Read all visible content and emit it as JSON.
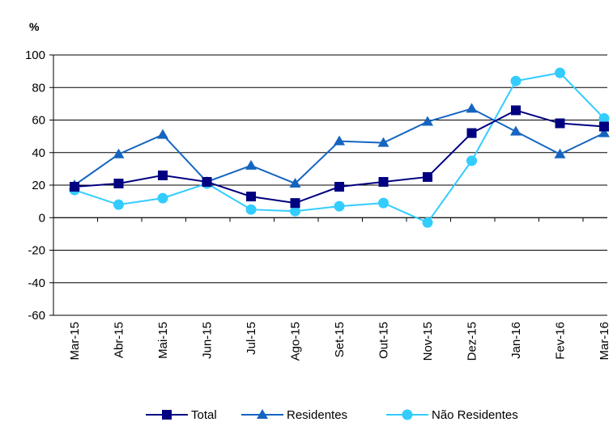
{
  "chart_data": {
    "type": "line",
    "title": "",
    "unit_label": "%",
    "categories": [
      "Mar-15",
      "Abr-15",
      "Mai-15",
      "Jun-15",
      "Jul-15",
      "Ago-15",
      "Set-15",
      "Out-15",
      "Nov-15",
      "Dez-15",
      "Jan-16",
      "Fev-16",
      "Mar-16"
    ],
    "ylim": [
      -60,
      100
    ],
    "yticks": [
      -60,
      -40,
      -20,
      0,
      20,
      40,
      60,
      80,
      100
    ],
    "grid": true,
    "legend_position": "bottom",
    "series": [
      {
        "name": "Total",
        "marker": "square",
        "color": "#000080",
        "values": [
          19,
          21,
          26,
          22,
          13,
          9,
          19,
          22,
          25,
          52,
          66,
          58,
          56
        ]
      },
      {
        "name": "Residentes",
        "marker": "triangle",
        "color": "#1565C0",
        "values": [
          20,
          39,
          51,
          22,
          32,
          21,
          47,
          46,
          59,
          67,
          53,
          39,
          52
        ]
      },
      {
        "name": "Não Residentes",
        "marker": "circle",
        "color": "#33CCFF",
        "values": [
          17,
          8,
          12,
          21,
          5,
          4,
          7,
          9,
          -3,
          35,
          84,
          89,
          61
        ]
      }
    ]
  }
}
